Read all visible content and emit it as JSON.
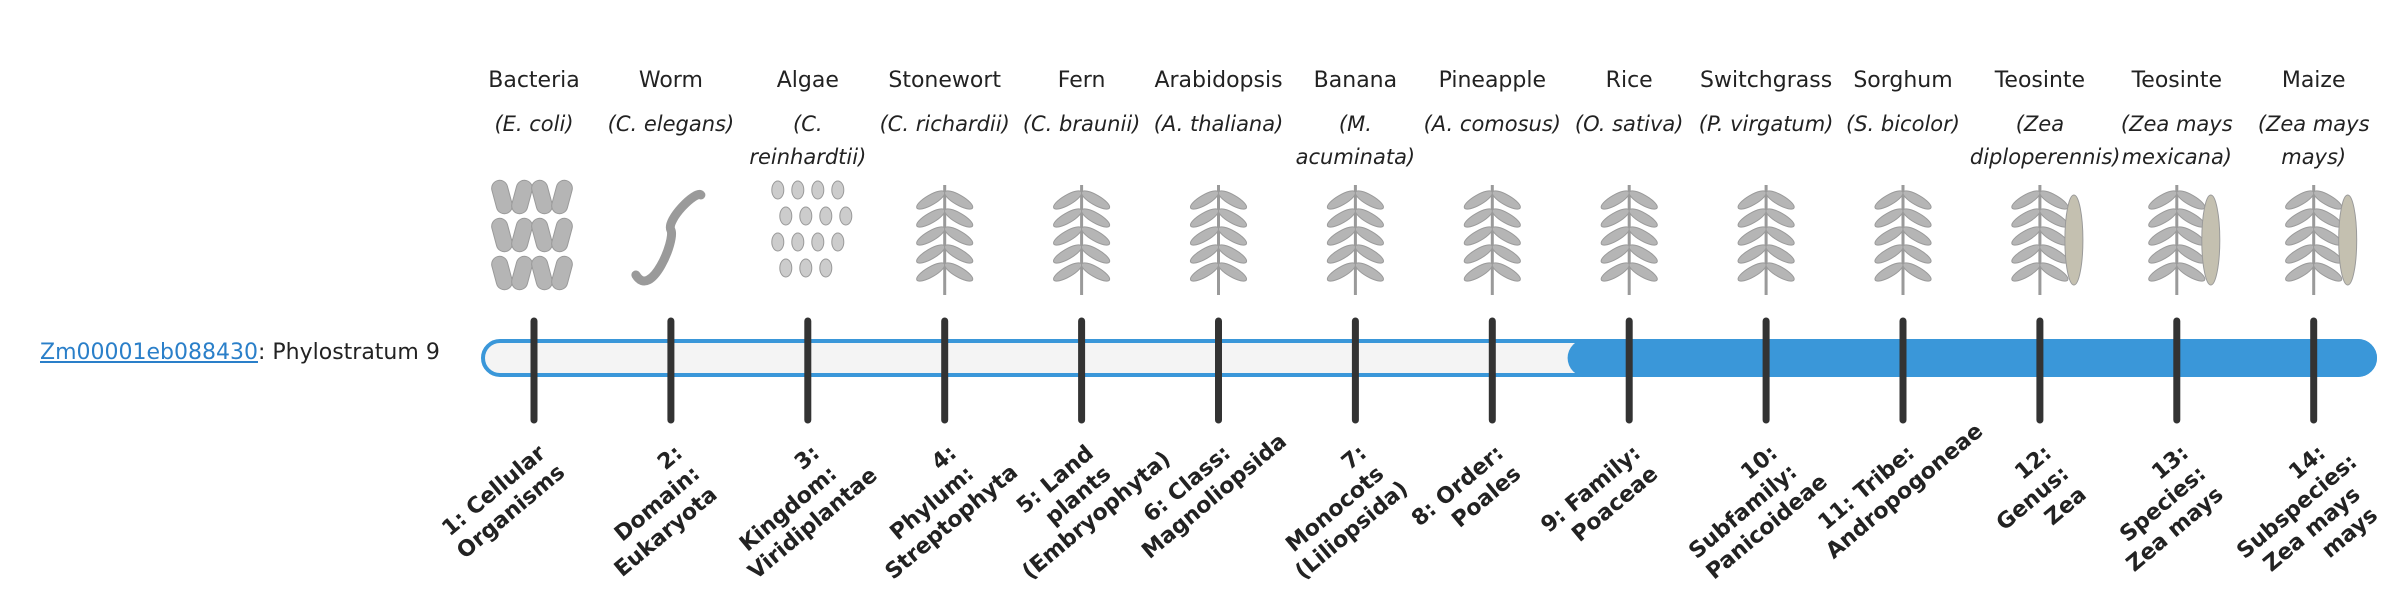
{
  "gene": {
    "id": "Zm00001eb088430",
    "label": ": Phylostratum",
    "phylostratum": 9
  },
  "organisms": [
    {
      "name": "Bacteria",
      "species": "(E. coli)",
      "stratum": "1: Cellular Organisms"
    },
    {
      "name": "Worm",
      "species": "(C. elegans)",
      "stratum": "2: Domain: Eukaryota"
    },
    {
      "name": "Algae",
      "species": "(C. reinhardtii)",
      "stratum": "3: Kingdom: Viridiplantae"
    },
    {
      "name": "Stonewort",
      "species": "(C. richardii)",
      "stratum": "4: Phylum: Streptophyta"
    },
    {
      "name": "Fern",
      "species": "(C. braunii)",
      "stratum": "5: Land plants (Embryophyta)"
    },
    {
      "name": "Arabidopsis",
      "species": "(A. thaliana)",
      "stratum": "6: Class: Magnoliopsida"
    },
    {
      "name": "Banana",
      "species": "(M. acuminata)",
      "stratum": "7: Monocots (Liliopsida)"
    },
    {
      "name": "Pineapple",
      "species": "(A. comosus)",
      "stratum": "8: Order: Poales"
    },
    {
      "name": "Rice",
      "species": "(O. sativa)",
      "stratum": "9: Family: Poaceae"
    },
    {
      "name": "Switchgrass",
      "species": "(P. virgatum)",
      "stratum": "10: Subfamily: Panicoideae"
    },
    {
      "name": "Sorghum",
      "species": "(S. bicolor)",
      "stratum": "11: Tribe: Andropogoneae"
    },
    {
      "name": "Teosinte",
      "species": "(Zea diploperennis)",
      "stratum": "12: Genus: Zea"
    },
    {
      "name": "Teosinte",
      "species": "(Zea mays mexicana)",
      "stratum": "13: Species: Zea mays"
    },
    {
      "name": "Maize",
      "species": "(Zea mays mays)",
      "stratum": "14: Subspecies: Zea mays mays"
    }
  ]
}
